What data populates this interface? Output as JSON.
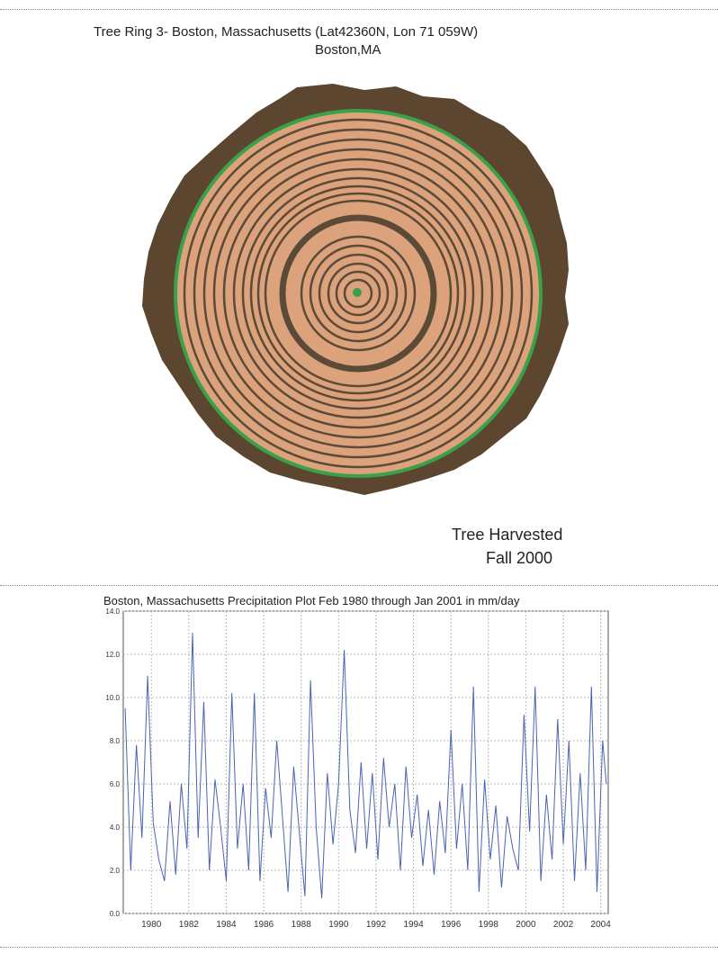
{
  "figure_top": {
    "title": "Tree Ring 3- Boston, Massachusetts (Lat42360N, Lon 71 059W)",
    "subtitle": "Boston,MA",
    "note_line1": "Tree Harvested",
    "note_line2": "Fall 2000",
    "colors": {
      "bark": "#5c4630",
      "wood": "#dba27c",
      "ring": "#5b4a38",
      "outer_ring": "#3aa04a",
      "pith": "#3aa04a"
    }
  },
  "chart_data": {
    "type": "line",
    "title": "Boston, Massachusetts Precipitation Plot Feb 1980 through Jan 2001 in mm/day",
    "xlabel": "",
    "ylabel": "",
    "xlim": [
      1978.5,
      2004.4
    ],
    "ylim": [
      0,
      14
    ],
    "x_ticks": [
      1980,
      1982,
      1984,
      1986,
      1988,
      1990,
      1992,
      1994,
      1996,
      1998,
      2000,
      2002,
      2004
    ],
    "y_ticks": [
      "0.0",
      "2.0",
      "4.0",
      "6.0",
      "8.0",
      "10.0",
      "12.0",
      "14.0"
    ],
    "grid": true,
    "line_color": "#4a64b4",
    "series": [
      {
        "x": [
          1978.6,
          1978.9,
          1979.2,
          1979.5,
          1979.8,
          1980.1,
          1980.4,
          1980.7,
          1981.0,
          1981.3,
          1981.6,
          1981.9,
          1982.2,
          1982.5,
          1982.8,
          1983.1,
          1983.4,
          1983.7,
          1984.0,
          1984.3,
          1984.6,
          1984.9,
          1985.2,
          1985.5,
          1985.8,
          1986.1,
          1986.4,
          1986.7,
          1987.0,
          1987.3,
          1987.6,
          1987.9,
          1988.2,
          1988.5,
          1988.8,
          1989.1,
          1989.4,
          1989.7,
          1990.0,
          1990.3,
          1990.6,
          1990.9,
          1991.2,
          1991.5,
          1991.8,
          1992.1,
          1992.4,
          1992.7,
          1993.0,
          1993.3,
          1993.6,
          1993.9,
          1994.2,
          1994.5,
          1994.8,
          1995.1,
          1995.4,
          1995.7,
          1996.0,
          1996.3,
          1996.6,
          1996.9,
          1997.2,
          1997.5,
          1997.8,
          1998.1,
          1998.4,
          1998.7,
          1999.0,
          1999.3,
          1999.6,
          1999.9,
          2000.2,
          2000.5,
          2000.8,
          2001.1,
          2001.4,
          2001.7,
          2002.0,
          2002.3,
          2002.6,
          2002.9,
          2003.2,
          2003.5,
          2003.8,
          2004.1,
          2004.3
        ],
        "values": [
          9.5,
          2.0,
          7.8,
          3.5,
          11.0,
          4.2,
          2.5,
          1.5,
          5.2,
          1.8,
          6.0,
          3.0,
          13.0,
          3.5,
          9.8,
          2.0,
          6.2,
          4.0,
          1.5,
          10.2,
          3.0,
          6.0,
          2.0,
          10.2,
          1.5,
          5.8,
          3.5,
          8.0,
          4.5,
          1.0,
          6.8,
          3.8,
          0.8,
          10.8,
          4.0,
          0.7,
          6.5,
          3.2,
          6.0,
          12.2,
          4.8,
          2.8,
          7.0,
          3.0,
          6.5,
          2.5,
          7.2,
          4.0,
          6.0,
          2.0,
          6.8,
          3.5,
          5.5,
          2.2,
          4.8,
          1.8,
          5.2,
          2.8,
          8.5,
          3.0,
          6.0,
          2.0,
          10.5,
          1.0,
          6.2,
          2.5,
          5.0,
          1.2,
          4.5,
          3.0,
          2.0,
          9.2,
          3.8,
          10.5,
          1.5,
          5.5,
          2.5,
          9.0,
          3.2,
          8.0,
          1.5,
          6.5,
          2.0,
          10.5,
          1.0,
          8.0,
          6.0
        ]
      }
    ]
  }
}
